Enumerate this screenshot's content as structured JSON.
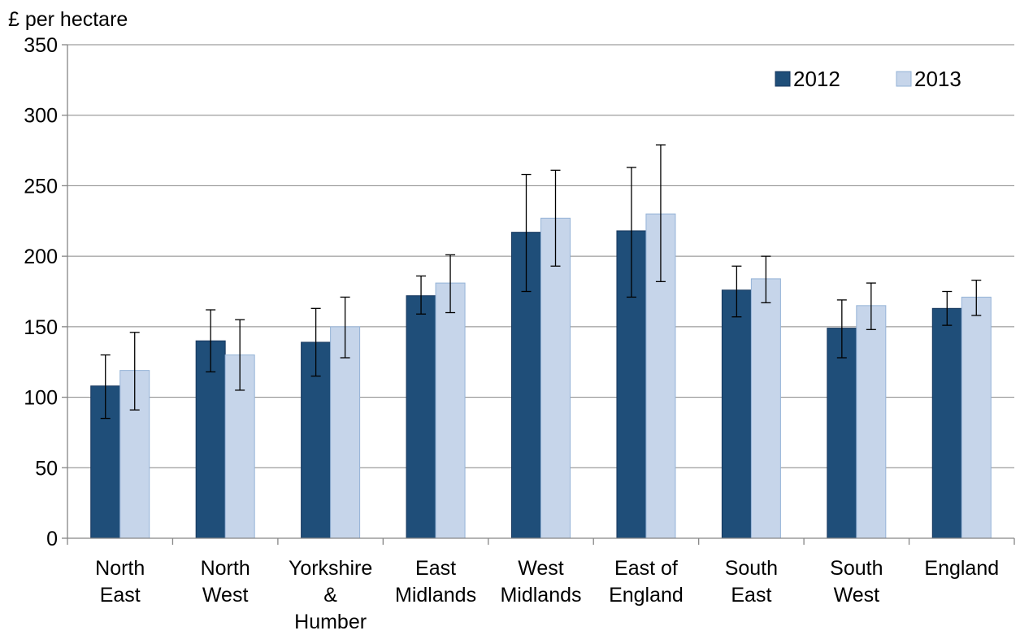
{
  "chart_data": {
    "type": "bar",
    "ylabel": "£ per hectare",
    "ylim": [
      0,
      350
    ],
    "yticks": [
      0,
      50,
      100,
      150,
      200,
      250,
      300,
      350
    ],
    "grid": true,
    "legend_position": "top-right",
    "categories": [
      [
        "North",
        "East"
      ],
      [
        "North",
        "West"
      ],
      [
        "Yorkshire",
        "&",
        "Humber"
      ],
      [
        "East",
        "Midlands"
      ],
      [
        "West",
        "Midlands"
      ],
      [
        "East of",
        "England"
      ],
      [
        "South",
        "East"
      ],
      [
        "South",
        "West"
      ],
      [
        "England"
      ]
    ],
    "series": [
      {
        "name": "2012",
        "color": "#1f4e79",
        "values": [
          108,
          140,
          139,
          172,
          217,
          218,
          176,
          149,
          163
        ],
        "error_low": [
          85,
          118,
          115,
          159,
          175,
          171,
          157,
          128,
          151
        ],
        "error_high": [
          130,
          162,
          163,
          186,
          258,
          263,
          193,
          169,
          175
        ]
      },
      {
        "name": "2013",
        "color": "#c6d5ea",
        "values": [
          119,
          130,
          150,
          181,
          227,
          230,
          184,
          165,
          171
        ],
        "error_low": [
          91,
          105,
          128,
          160,
          193,
          182,
          167,
          148,
          158
        ],
        "error_high": [
          146,
          155,
          171,
          201,
          261,
          279,
          200,
          181,
          183
        ]
      }
    ]
  }
}
